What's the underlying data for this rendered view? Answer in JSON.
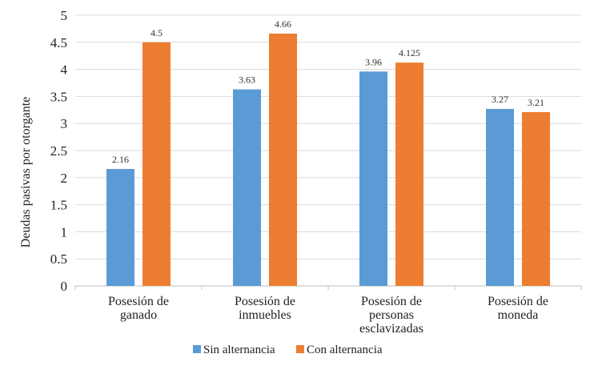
{
  "chart_data": {
    "type": "bar",
    "title": "",
    "xlabel": "",
    "ylabel": "Deudas pasivas por otorgante",
    "ylim": [
      0,
      5
    ],
    "yticks": [
      "0",
      "0.5",
      "1",
      "1.5",
      "2",
      "2.5",
      "3",
      "3.5",
      "4",
      "4.5",
      "5"
    ],
    "grid": true,
    "legend_position": "bottom",
    "categories": [
      [
        "Posesión de",
        "ganado"
      ],
      [
        "Posesión de",
        "inmuebles"
      ],
      [
        "Posesión de",
        "personas",
        "esclavizadas"
      ],
      [
        "Posesión de",
        "moneda"
      ]
    ],
    "series": [
      {
        "name": "Sin alternancia",
        "color": "#5B9BD5",
        "values": [
          2.16,
          3.63,
          3.96,
          3.27
        ],
        "labels": [
          "2.16",
          "3.63",
          "3.96",
          "3.27"
        ]
      },
      {
        "name": "Con alternancia",
        "color": "#ED7D31",
        "values": [
          4.5,
          4.66,
          4.125,
          3.21
        ],
        "labels": [
          "4.5",
          "4.66",
          "4.125",
          "3.21"
        ]
      }
    ]
  }
}
